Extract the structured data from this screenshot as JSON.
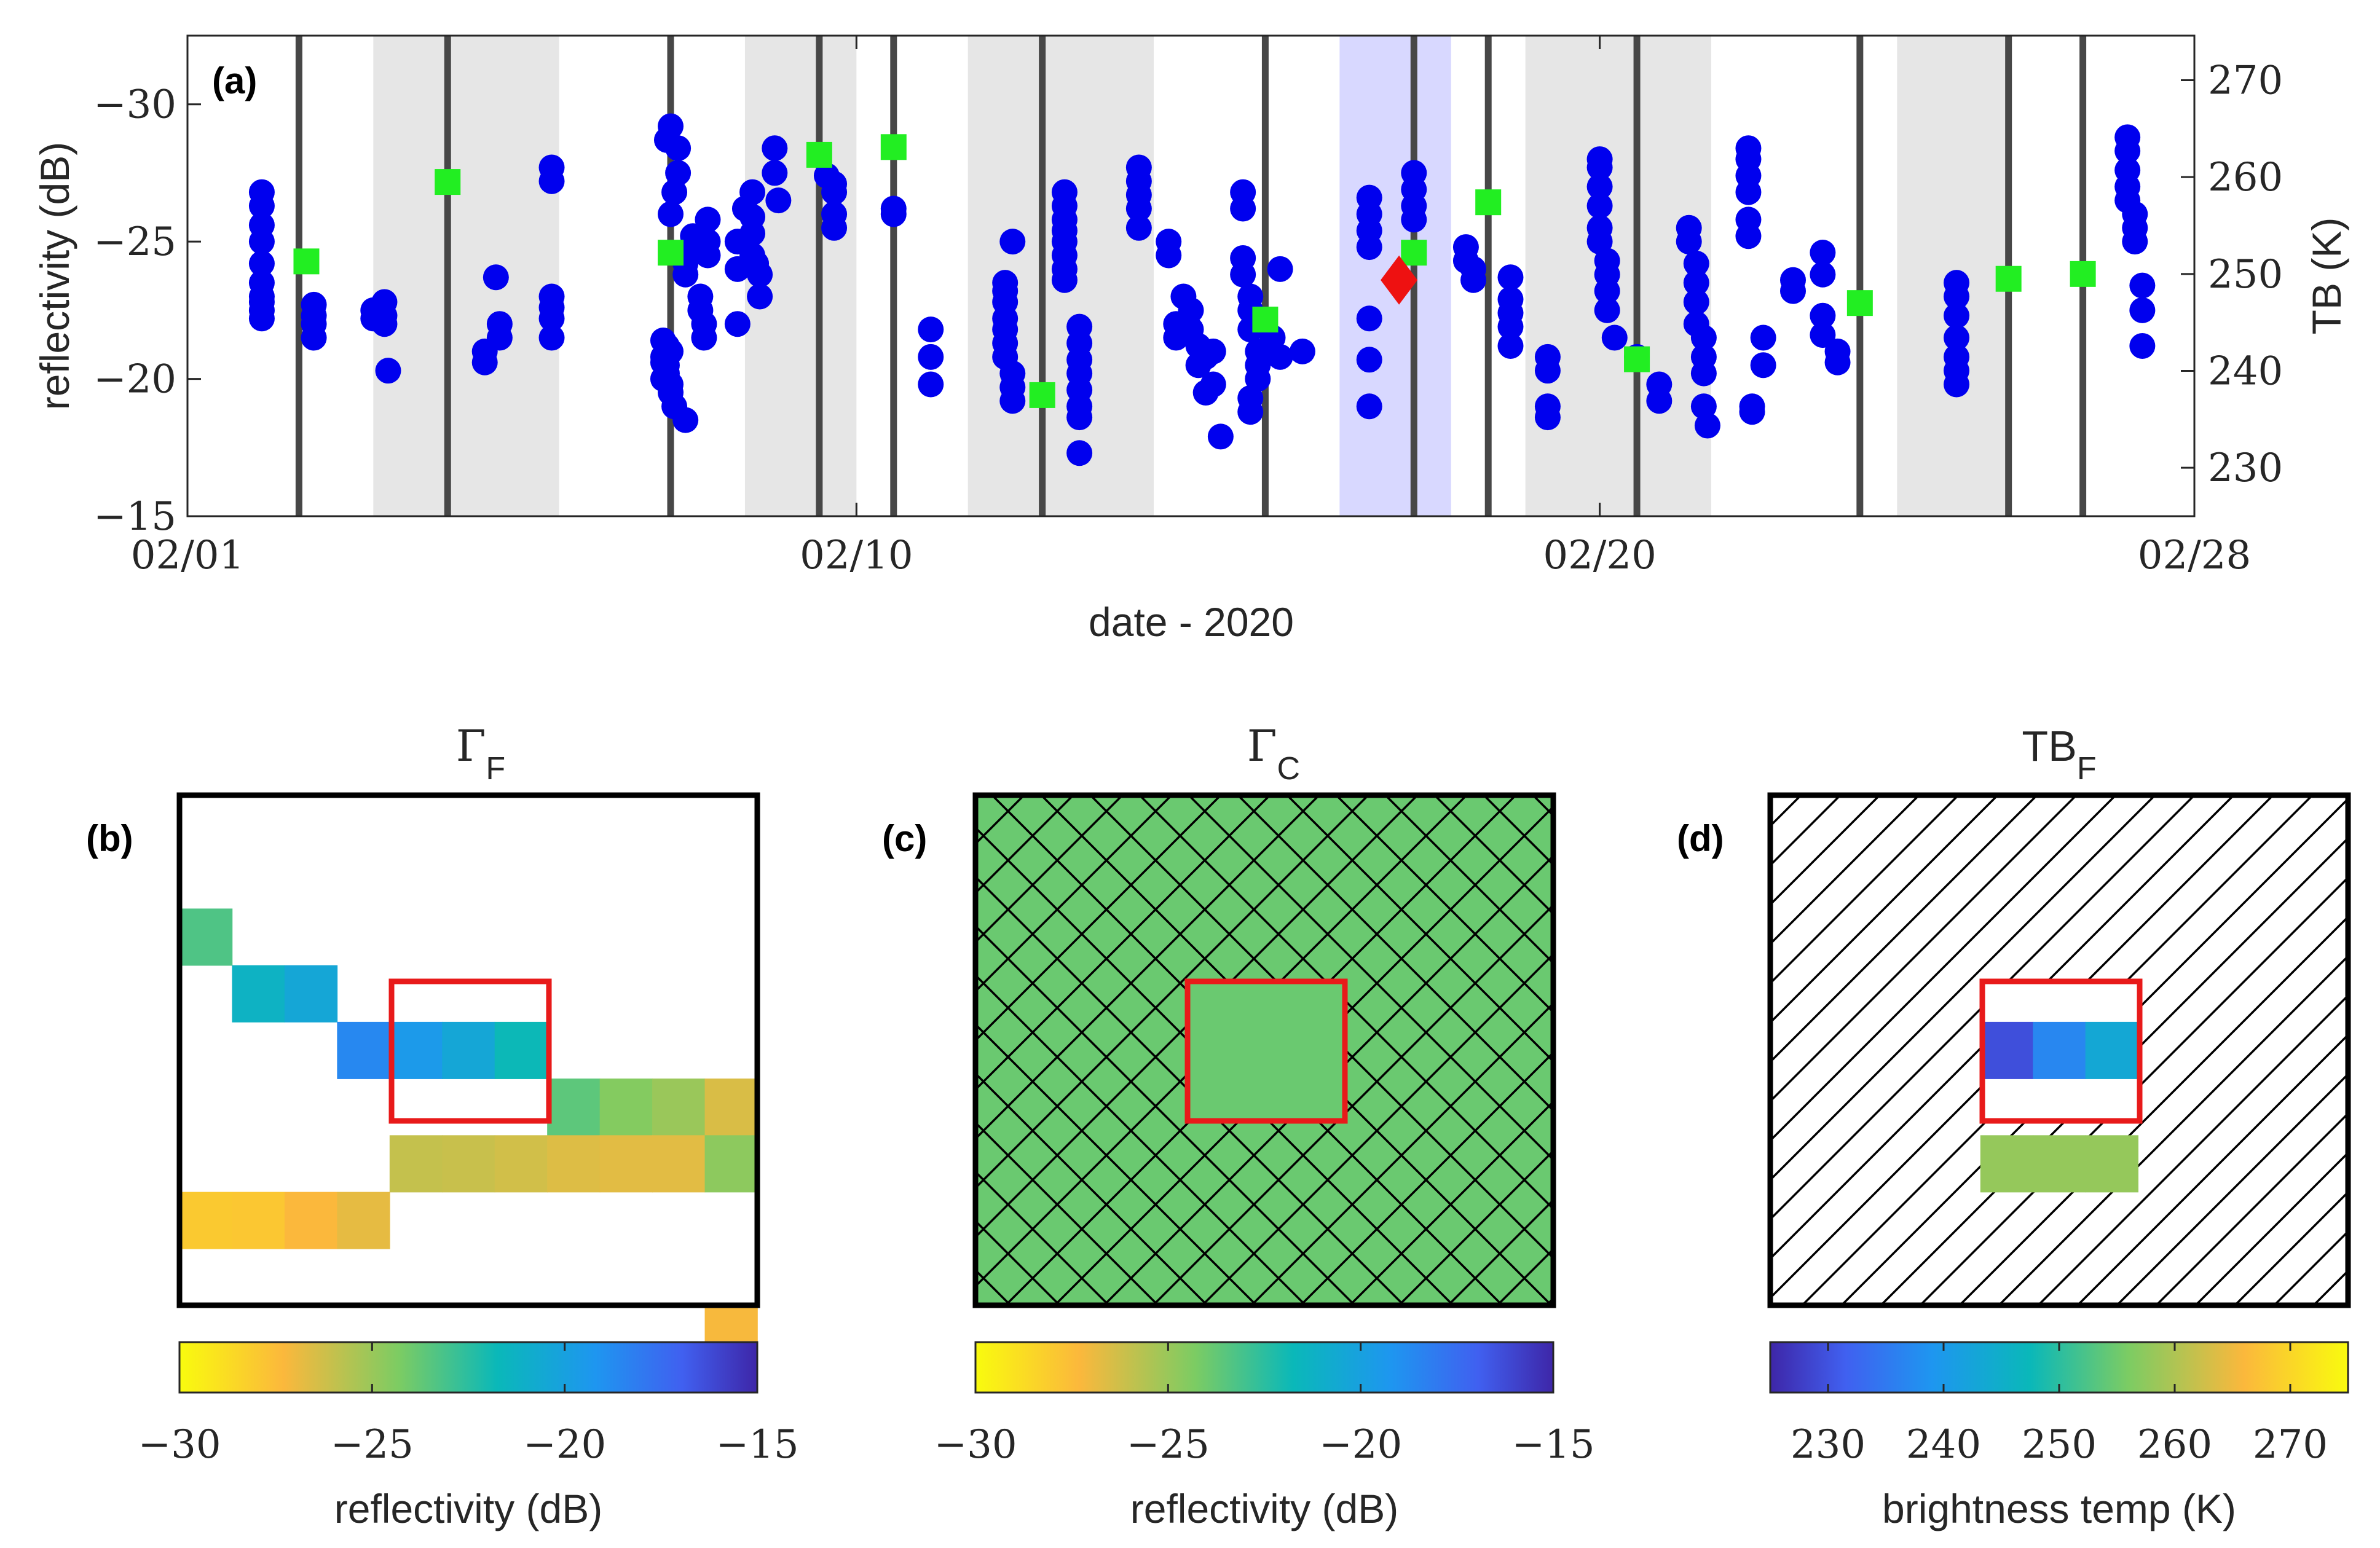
{
  "chart_data": [
    {
      "panel_label": "(a)",
      "type": "scatter",
      "xlabel": "date - 2020",
      "ylabel": "reflectivity (dB)",
      "ylabel_right": "TB (K)",
      "xlim": [
        1,
        28
      ],
      "ylim": [
        -32.5,
        -15
      ],
      "y_reversed": true,
      "y_right_lim": [
        225,
        274.6
      ],
      "xticks": [
        {
          "v": 1,
          "label": "02/01"
        },
        {
          "v": 10,
          "label": "02/10"
        },
        {
          "v": 20,
          "label": "02/20"
        },
        {
          "v": 28,
          "label": "02/28"
        }
      ],
      "yticks": [
        {
          "v": -30,
          "label": "−30"
        },
        {
          "v": -25,
          "label": "−25"
        },
        {
          "v": -20,
          "label": "−20"
        },
        {
          "v": -15,
          "label": "−15"
        }
      ],
      "yticks_right": [
        {
          "v": 230,
          "label": "230"
        },
        {
          "v": 240,
          "label": "240"
        },
        {
          "v": 250,
          "label": "250"
        },
        {
          "v": 260,
          "label": "260"
        },
        {
          "v": 270,
          "label": "270"
        }
      ],
      "gray_bands": [
        [
          3.5,
          6.0
        ],
        [
          8.5,
          10.0
        ],
        [
          11.5,
          14.0
        ],
        [
          19.0,
          21.5
        ],
        [
          24.0,
          25.5
        ]
      ],
      "highlight_band": [
        16.5,
        18.0
      ],
      "vertical_lines": [
        2.5,
        4.5,
        7.5,
        9.5,
        10.5,
        12.5,
        15.5,
        17.5,
        18.5,
        20.5,
        23.5,
        25.5,
        26.5
      ],
      "colors": {
        "reflectivity": "#0000ee",
        "tb": "#22ee22",
        "selected": "#ee1111",
        "band_gray": "#e6e6e6",
        "band_highlight": "#d8d8ff",
        "vline": "#474747"
      },
      "series": [
        {
          "name": "reflectivity",
          "axis": "left",
          "marker": "circle",
          "x": [
            2.0,
            2.0,
            2.0,
            2.0,
            2.0,
            2.0,
            2.0,
            2.0,
            2.0,
            2.0,
            2.7,
            2.7,
            2.7,
            2.7,
            3.5,
            3.5,
            3.65,
            3.65,
            3.65,
            3.7,
            5.0,
            5.0,
            5.2,
            5.2,
            5.15,
            5.9,
            5.9,
            5.9,
            5.9,
            5.9,
            5.9,
            7.4,
            7.45,
            7.45,
            7.5,
            7.5,
            7.55,
            7.5,
            7.45,
            7.4,
            7.4,
            7.4,
            7.5,
            7.55,
            7.6,
            7.6,
            7.45,
            7.5,
            7.7,
            7.7,
            7.8,
            7.8,
            7.9,
            7.9,
            7.95,
            7.95,
            8.0,
            8.0,
            8.0,
            7.7,
            8.4,
            8.4,
            8.4,
            8.5,
            8.6,
            8.6,
            8.6,
            8.6,
            8.65,
            8.7,
            8.7,
            8.9,
            8.9,
            8.95,
            9.6,
            9.7,
            9.7,
            9.7,
            9.7,
            10.5,
            10.5,
            11.0,
            11.0,
            11.0,
            12.0,
            12.0,
            12.0,
            12.0,
            12.0,
            12.0,
            12.0,
            12.1,
            12.1,
            12.1,
            12.1,
            12.8,
            12.8,
            12.8,
            12.8,
            12.8,
            12.8,
            12.8,
            12.8,
            13.0,
            13.0,
            13.0,
            13.0,
            13.0,
            13.0,
            13.0,
            13.0,
            13.8,
            13.8,
            13.8,
            13.8,
            13.8,
            14.2,
            14.2,
            14.3,
            14.3,
            14.4,
            14.5,
            14.5,
            14.6,
            14.6,
            14.7,
            14.7,
            14.8,
            14.8,
            14.9,
            15.2,
            15.2,
            15.2,
            15.2,
            15.3,
            15.3,
            15.3,
            15.4,
            15.4,
            15.4,
            15.3,
            15.3,
            15.6,
            15.7,
            15.7,
            16.0,
            16.9,
            16.9,
            16.9,
            16.9,
            16.9,
            16.9,
            16.9,
            17.5,
            17.5,
            17.5,
            17.5,
            18.2,
            18.2,
            18.3,
            18.3,
            18.8,
            18.8,
            18.8,
            18.8,
            18.8,
            19.3,
            19.3,
            19.3,
            19.3,
            20.0,
            20.0,
            20.0,
            20.0,
            20.0,
            20.0,
            20.1,
            20.1,
            20.1,
            20.1,
            20.2,
            20.5,
            20.8,
            20.8,
            21.2,
            21.2,
            21.3,
            21.3,
            21.3,
            21.3,
            21.4,
            21.4,
            21.4,
            21.4,
            21.45,
            22.0,
            22.0,
            22.0,
            22.0,
            22.0,
            22.0,
            22.05,
            22.05,
            22.2,
            22.2,
            22.6,
            22.6,
            23.0,
            23.0,
            23.0,
            23.0,
            23.2,
            23.2,
            24.8,
            24.8,
            24.8,
            24.8,
            24.8,
            24.8,
            24.8,
            27.1,
            27.1,
            27.1,
            27.1,
            27.1,
            27.2,
            27.2,
            27.2,
            27.3,
            27.3,
            27.3
          ],
          "y": [
            -26.8,
            -26.3,
            -25.6,
            -25.0,
            -24.2,
            -23.5,
            -23.0,
            -22.8,
            -22.5,
            -22.2,
            -22.7,
            -22.3,
            -22.0,
            -21.5,
            -22.5,
            -22.2,
            -22.8,
            -22.3,
            -22.0,
            -20.3,
            -21.0,
            -20.6,
            -22.0,
            -21.5,
            -23.7,
            -27.7,
            -27.2,
            -23.0,
            -22.6,
            -22.2,
            -21.5,
            -20.8,
            -20.5,
            -20.2,
            -19.8,
            -19.5,
            -19.0,
            -21.0,
            -21.2,
            -21.4,
            -20.6,
            -20.0,
            -26.0,
            -26.8,
            -27.5,
            -28.4,
            -28.7,
            -29.2,
            -23.8,
            -24.2,
            -24.6,
            -25.2,
            -23.0,
            -22.5,
            -22.0,
            -21.5,
            -24.5,
            -25.0,
            -25.8,
            -18.5,
            -22.0,
            -24.0,
            -25.0,
            -26.2,
            -26.8,
            -25.9,
            -25.3,
            -24.5,
            -24.2,
            -23.8,
            -23.0,
            -28.4,
            -27.5,
            -26.5,
            -27.4,
            -27.1,
            -26.8,
            -26.0,
            -25.5,
            -26.2,
            -26.0,
            -21.8,
            -20.8,
            -19.8,
            -23.5,
            -23.2,
            -22.8,
            -22.2,
            -21.8,
            -21.3,
            -20.8,
            -20.2,
            -19.7,
            -19.2,
            -25.0,
            -24.0,
            -23.6,
            -24.5,
            -25.0,
            -25.4,
            -25.8,
            -26.3,
            -26.8,
            -21.9,
            -21.3,
            -20.7,
            -20.2,
            -19.6,
            -19.0,
            -18.6,
            -17.3,
            -27.7,
            -27.2,
            -26.7,
            -26.2,
            -25.5,
            -25.0,
            -24.5,
            -22.0,
            -21.5,
            -23.0,
            -22.5,
            -21.8,
            -21.2,
            -20.5,
            -20.8,
            -19.5,
            -19.8,
            -21.0,
            -17.9,
            -26.2,
            -26.8,
            -24.4,
            -23.8,
            -23.0,
            -22.5,
            -21.8,
            -21.0,
            -20.5,
            -20.0,
            -19.3,
            -18.8,
            -21.5,
            -24.0,
            -20.8,
            -21.0,
            -26.6,
            -26.0,
            -25.4,
            -24.8,
            -22.2,
            -20.7,
            -19.0,
            -27.5,
            -26.9,
            -26.3,
            -25.8,
            -24.8,
            -24.3,
            -24.0,
            -23.6,
            -23.7,
            -22.9,
            -22.4,
            -21.9,
            -21.2,
            -20.8,
            -20.3,
            -19.0,
            -18.6,
            -28.0,
            -27.7,
            -27.0,
            -26.3,
            -25.5,
            -25.0,
            -24.3,
            -23.8,
            -23.2,
            -22.5,
            -21.5,
            -20.8,
            -19.8,
            -19.2,
            -25.5,
            -25.0,
            -24.2,
            -23.5,
            -22.8,
            -22.0,
            -21.5,
            -20.8,
            -20.2,
            -19.0,
            -18.3,
            -28.4,
            -28.0,
            -27.4,
            -26.8,
            -25.8,
            -25.2,
            -19.0,
            -18.8,
            -21.5,
            -20.5,
            -23.6,
            -23.2,
            -24.6,
            -23.8,
            -22.3,
            -21.6,
            -21.0,
            -20.6,
            -23.5,
            -23.0,
            -22.3,
            -21.5,
            -20.8,
            -20.3,
            -19.8,
            -28.8,
            -28.3,
            -27.6,
            -27.0,
            -26.5,
            -26.0,
            -25.5,
            -25.0,
            -23.4,
            -22.5,
            -21.2
          ]
        },
        {
          "name": "TB",
          "axis": "right",
          "marker": "square",
          "x": [
            2.6,
            4.5,
            7.5,
            9.5,
            10.5,
            12.5,
            15.5,
            17.5,
            18.5,
            20.5,
            23.5,
            25.5,
            26.5
          ],
          "y": [
            251.3,
            259.5,
            252.2,
            262.3,
            263.1,
            237.5,
            245.3,
            252.2,
            257.4,
            241.2,
            247.0,
            249.5,
            250.0
          ]
        },
        {
          "name": "selected",
          "axis": "left",
          "marker": "diamond",
          "x": [
            17.3
          ],
          "y": [
            -23.6
          ]
        }
      ]
    },
    {
      "panel_label": "(b)",
      "type": "heatmap",
      "title_base": "Γ",
      "title_sub": "F",
      "grid": [
        11,
        9
      ],
      "cells": [
        {
          "r": 2,
          "c": 0,
          "v": -23.3
        },
        {
          "r": 3,
          "c": 1,
          "v": -21.3
        },
        {
          "r": 3,
          "c": 2,
          "v": -20.4
        },
        {
          "r": 4,
          "c": 3,
          "v": -18.6
        },
        {
          "r": 4,
          "c": 4,
          "v": -19.5
        },
        {
          "r": 4,
          "c": 5,
          "v": -20.4
        },
        {
          "r": 4,
          "c": 6,
          "v": -21.8
        },
        {
          "r": 5,
          "c": 7,
          "v": -23.6
        },
        {
          "r": 5,
          "c": 8,
          "v": -24.5
        },
        {
          "r": 5,
          "c": 9,
          "v": -25.0
        },
        {
          "r": 5,
          "c": 10,
          "v": -26.5
        },
        {
          "r": 6,
          "c": 4,
          "v": -26.0
        },
        {
          "r": 6,
          "c": 5,
          "v": -26.1
        },
        {
          "r": 6,
          "c": 6,
          "v": -26.3
        },
        {
          "r": 6,
          "c": 7,
          "v": -26.6
        },
        {
          "r": 6,
          "c": 8,
          "v": -26.7
        },
        {
          "r": 6,
          "c": 9,
          "v": -26.7
        },
        {
          "r": 6,
          "c": 10,
          "v": -24.7
        },
        {
          "r": 7,
          "c": 0,
          "v": -28.0
        },
        {
          "r": 7,
          "c": 1,
          "v": -27.9
        },
        {
          "r": 7,
          "c": 2,
          "v": -27.3
        },
        {
          "r": 7,
          "c": 3,
          "v": -26.8
        },
        {
          "r": 9,
          "c": 10,
          "v": -27.2
        }
      ],
      "highlight_box": {
        "r0": 4,
        "r1": 6,
        "c0": 4,
        "c1": 6
      },
      "colorbar": {
        "min": -30,
        "max": -15,
        "label": "reflectivity (dB)",
        "ticks": [
          {
            "v": -30,
            "label": "−30"
          },
          {
            "v": -25,
            "label": "−25"
          },
          {
            "v": -20,
            "label": "−20"
          },
          {
            "v": -15,
            "label": "−15"
          }
        ]
      }
    },
    {
      "panel_label": "(c)",
      "type": "heatmap",
      "title_base": "Γ",
      "title_sub": "C",
      "uniform_value": -23.9,
      "hatch": "cross",
      "highlight_box": {
        "r0": 4,
        "r1": 6,
        "c0": 4,
        "c1": 6
      },
      "colorbar": {
        "min": -30,
        "max": -15,
        "label": "reflectivity (dB)",
        "ticks": [
          {
            "v": -30,
            "label": "−30"
          },
          {
            "v": -25,
            "label": "−25"
          },
          {
            "v": -20,
            "label": "−20"
          },
          {
            "v": -15,
            "label": "−15"
          }
        ]
      }
    },
    {
      "panel_label": "(d)",
      "type": "heatmap",
      "title_base": "TB",
      "title_sub": "F",
      "hatch": "diagonal",
      "grid": [
        11,
        9
      ],
      "cells": [
        {
          "r": 4,
          "c": 4,
          "v": 229.6
        },
        {
          "r": 4,
          "c": 5,
          "v": 236.9
        },
        {
          "r": 4,
          "c": 6,
          "v": 243.3
        },
        {
          "r": 6,
          "c": 4,
          "v": 258.0
        },
        {
          "r": 6,
          "c": 5,
          "v": 258.0
        },
        {
          "r": 6,
          "c": 6,
          "v": 258.0
        }
      ],
      "highlight_box": {
        "r0": 4,
        "r1": 6,
        "c0": 4,
        "c1": 6
      },
      "colorbar": {
        "min": 225,
        "max": 275,
        "label": "brightness temp (K)",
        "ticks": [
          {
            "v": 230,
            "label": "230"
          },
          {
            "v": 240,
            "label": "240"
          },
          {
            "v": 250,
            "label": "250"
          },
          {
            "v": 260,
            "label": "260"
          },
          {
            "v": 270,
            "label": "270"
          }
        ]
      }
    }
  ]
}
